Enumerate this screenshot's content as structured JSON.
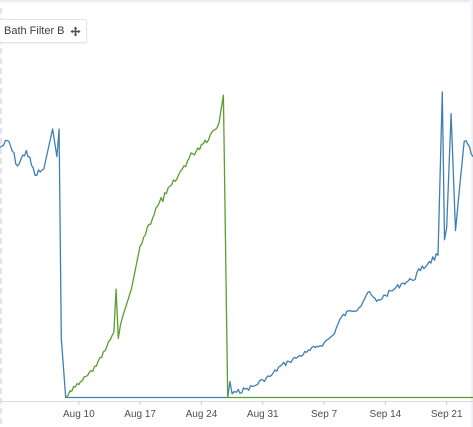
{
  "panel": {
    "title": "Bath Filter B",
    "move_icon": "move-icon"
  },
  "chart_data": {
    "type": "line",
    "title": "Bath Filter B",
    "xlabel": "",
    "ylabel": "",
    "x_axis": "date",
    "xlim": [
      "2021-08-01",
      "2021-09-24"
    ],
    "ylim": [
      0,
      100
    ],
    "grid": false,
    "x_ticks": [
      {
        "date": "2021-08-10",
        "label": "Aug 10"
      },
      {
        "date": "2021-08-17",
        "label": "Aug 17"
      },
      {
        "date": "2021-08-24",
        "label": "Aug 24"
      },
      {
        "date": "2021-08-31",
        "label": "Aug 31"
      },
      {
        "date": "2021-09-07",
        "label": "Sep 7"
      },
      {
        "date": "2021-09-14",
        "label": "Sep 14"
      },
      {
        "date": "2021-09-21",
        "label": "Sep 21"
      }
    ],
    "series": [
      {
        "color": "#3f7fb3",
        "points": [
          [
            "2021-08-01",
            82
          ],
          [
            "2021-08-02",
            84
          ],
          [
            "2021-08-03",
            76
          ],
          [
            "2021-08-04",
            81
          ],
          [
            "2021-08-05",
            73
          ],
          [
            "2021-08-06",
            75
          ],
          [
            "2021-08-07",
            88
          ],
          [
            "2021-08-07T12:00",
            79
          ],
          [
            "2021-08-07T18:00",
            88
          ],
          [
            "2021-08-08",
            20
          ],
          [
            "2021-08-08T12:00",
            0.8
          ],
          [
            "2021-08-15",
            0.8
          ],
          [
            "2021-08-22",
            0.8
          ],
          [
            "2021-08-27",
            0.8
          ],
          [
            "2021-08-27T06:00",
            6
          ],
          [
            "2021-08-27T12:00",
            2
          ],
          [
            "2021-08-28",
            2.5
          ],
          [
            "2021-08-29",
            3.5
          ],
          [
            "2021-08-30",
            4.5
          ],
          [
            "2021-08-31",
            6.5
          ],
          [
            "2021-09-01",
            8
          ],
          [
            "2021-09-02",
            11
          ],
          [
            "2021-09-03",
            12.5
          ],
          [
            "2021-09-04",
            14
          ],
          [
            "2021-09-05",
            15.5
          ],
          [
            "2021-09-06",
            17
          ],
          [
            "2021-09-07",
            18.5
          ],
          [
            "2021-09-08",
            21
          ],
          [
            "2021-09-09",
            27
          ],
          [
            "2021-09-10",
            29
          ],
          [
            "2021-09-11",
            30
          ],
          [
            "2021-09-12",
            35
          ],
          [
            "2021-09-13",
            32
          ],
          [
            "2021-09-14",
            34
          ],
          [
            "2021-09-15",
            36
          ],
          [
            "2021-09-16",
            38
          ],
          [
            "2021-09-17",
            39
          ],
          [
            "2021-09-18",
            42
          ],
          [
            "2021-09-19",
            45
          ],
          [
            "2021-09-20",
            47
          ],
          [
            "2021-09-20T12:00",
            100
          ],
          [
            "2021-09-20T18:00",
            52
          ],
          [
            "2021-09-21",
            56
          ],
          [
            "2021-09-21T12:00",
            93
          ],
          [
            "2021-09-22",
            55
          ],
          [
            "2021-09-22T12:00",
            70
          ],
          [
            "2021-09-23",
            84
          ],
          [
            "2021-09-24",
            79
          ]
        ]
      },
      {
        "color": "#5a9e2f",
        "points": [
          [
            "2021-08-08T12:00",
            0.8
          ],
          [
            "2021-08-09",
            3
          ],
          [
            "2021-08-10",
            5
          ],
          [
            "2021-08-11",
            8
          ],
          [
            "2021-08-12",
            11
          ],
          [
            "2021-08-13",
            16
          ],
          [
            "2021-08-14",
            22
          ],
          [
            "2021-08-14T06:00",
            36
          ],
          [
            "2021-08-14T12:00",
            20
          ],
          [
            "2021-08-15",
            27
          ],
          [
            "2021-08-16",
            36
          ],
          [
            "2021-08-17",
            50
          ],
          [
            "2021-08-18",
            57
          ],
          [
            "2021-08-19",
            63
          ],
          [
            "2021-08-20",
            67
          ],
          [
            "2021-08-21",
            71
          ],
          [
            "2021-08-22",
            76
          ],
          [
            "2021-08-23",
            80
          ],
          [
            "2021-08-24",
            83
          ],
          [
            "2021-08-25",
            86
          ],
          [
            "2021-08-26",
            90
          ],
          [
            "2021-08-26T12:00",
            99
          ],
          [
            "2021-08-27",
            0.8
          ],
          [
            "2021-09-05",
            0.8
          ],
          [
            "2021-09-15",
            0.8
          ],
          [
            "2021-09-24",
            0.8
          ]
        ]
      }
    ]
  }
}
